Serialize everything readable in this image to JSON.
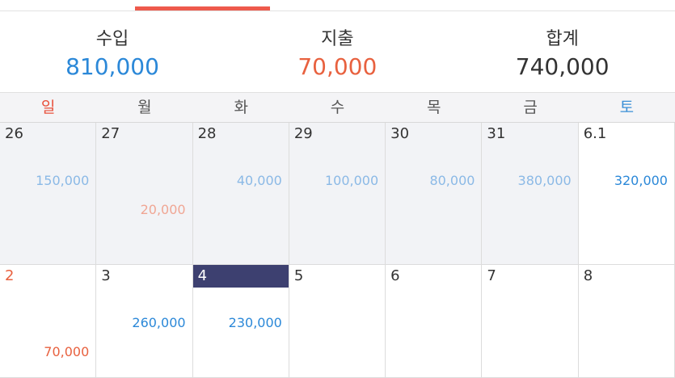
{
  "summary": [
    {
      "label": "수입",
      "value": "810,000",
      "color": "#2b88d8"
    },
    {
      "label": "지출",
      "value": "70,000",
      "color": "#e8613f"
    },
    {
      "label": "합계",
      "value": "740,000",
      "color": "#333333"
    }
  ],
  "weekdays": [
    {
      "label": "일",
      "color": "#e8513c"
    },
    {
      "label": "월",
      "color": "#555555"
    },
    {
      "label": "화",
      "color": "#555555"
    },
    {
      "label": "수",
      "color": "#555555"
    },
    {
      "label": "목",
      "color": "#555555"
    },
    {
      "label": "금",
      "color": "#555555"
    },
    {
      "label": "토",
      "color": "#3a8fd6"
    }
  ],
  "weeks": [
    [
      {
        "day": "26",
        "income": "150,000",
        "muted": true
      },
      {
        "day": "27",
        "expense": "20,000",
        "muted": true
      },
      {
        "day": "28",
        "income": "40,000",
        "muted": true
      },
      {
        "day": "29",
        "income": "100,000",
        "muted": true
      },
      {
        "day": "30",
        "income": "80,000",
        "muted": true
      },
      {
        "day": "31",
        "income": "380,000",
        "muted": true
      },
      {
        "day": "6.1",
        "income": "320,000"
      }
    ],
    [
      {
        "day": "2",
        "expense": "70,000",
        "holiday": true
      },
      {
        "day": "3",
        "income": "260,000"
      },
      {
        "day": "4",
        "income": "230,000",
        "selected": true
      },
      {
        "day": "5"
      },
      {
        "day": "6"
      },
      {
        "day": "7"
      },
      {
        "day": "8"
      }
    ]
  ]
}
